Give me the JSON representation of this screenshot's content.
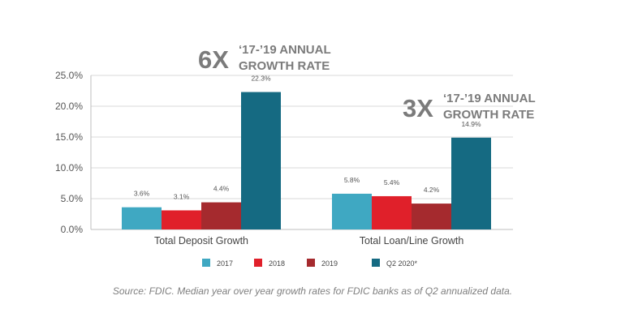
{
  "chart_data": {
    "type": "bar",
    "categories": [
      "Total Deposit Growth",
      "Total Loan/Line Growth"
    ],
    "series": [
      {
        "name": "2017",
        "color": "#3fa8c2",
        "values": [
          3.6,
          5.8
        ],
        "labels": [
          "3.6%",
          "5.8%"
        ]
      },
      {
        "name": "2018",
        "color": "#e0202a",
        "values": [
          3.1,
          5.4
        ],
        "labels": [
          "3.1%",
          "5.4%"
        ]
      },
      {
        "name": "2019",
        "color": "#a52a2e",
        "values": [
          4.4,
          4.2
        ],
        "labels": [
          "4.4%",
          "4.2%"
        ]
      },
      {
        "name": "Q2 2020*",
        "color": "#156a82",
        "values": [
          22.3,
          14.9
        ],
        "labels": [
          "22.3%",
          "14.9%"
        ]
      }
    ],
    "yticks": [
      "0.0%",
      "5.0%",
      "10.0%",
      "15.0%",
      "20.0%",
      "25.0%"
    ],
    "ylim": [
      0,
      25
    ],
    "grid": true,
    "legend_position": "bottom",
    "annotations": [
      {
        "big": "6X",
        "line1": "‘17-’19 ANNUAL",
        "line2": "GROWTH RATE"
      },
      {
        "big": "3X",
        "line1": "‘17-’19 ANNUAL",
        "line2": "GROWTH RATE"
      }
    ],
    "source": "Source: FDIC. Median year over year growth rates for FDIC banks as of Q2 annualized data."
  }
}
